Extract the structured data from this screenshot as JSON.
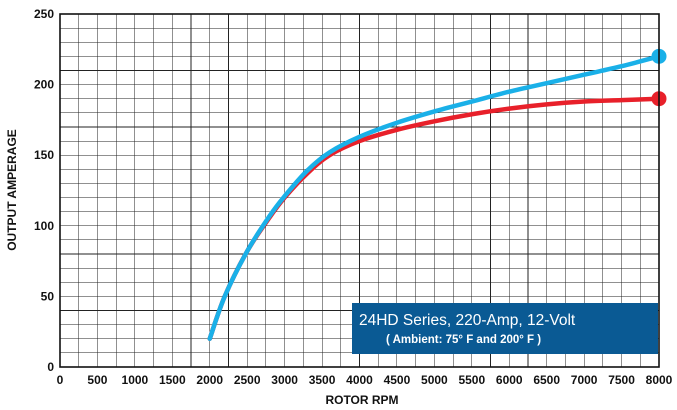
{
  "chart_data": {
    "type": "line",
    "xlabel": "ROTOR RPM",
    "ylabel": "OUTPUT AMPERAGE",
    "xlim": [
      0,
      8000
    ],
    "ylim": [
      0,
      250
    ],
    "x_ticks": [
      0,
      500,
      1000,
      1500,
      2000,
      2500,
      3000,
      3500,
      4000,
      4500,
      5000,
      5500,
      6000,
      6500,
      7000,
      7500,
      8000
    ],
    "y_ticks": [
      0,
      50,
      100,
      150,
      200,
      250
    ],
    "grid": true,
    "legend": {
      "title": "24HD Series, 220-Amp, 12-Volt",
      "subtitle": "( Ambient: 75° F and 200° F )",
      "placement": "bottom-right",
      "color": "#0a5a94"
    },
    "series": [
      {
        "color": "#e8202a",
        "x": [
          2000,
          2200,
          2500,
          2800,
          3000,
          3300,
          3600,
          4000,
          4500,
          5000,
          5500,
          6000,
          6500,
          7000,
          7500,
          8000
        ],
        "y": [
          20,
          50,
          82,
          106,
          120,
          137,
          150,
          160,
          168,
          174,
          179,
          183,
          186,
          188,
          189,
          190
        ]
      },
      {
        "color": "#1ab0e8",
        "x": [
          2000,
          2200,
          2500,
          2800,
          3000,
          3300,
          3600,
          4000,
          4500,
          5000,
          5500,
          6000,
          6500,
          7000,
          7500,
          8000
        ],
        "y": [
          20,
          50,
          82,
          107,
          121,
          139,
          152,
          163,
          173,
          181,
          188,
          195,
          201,
          207,
          213,
          220
        ]
      }
    ]
  }
}
